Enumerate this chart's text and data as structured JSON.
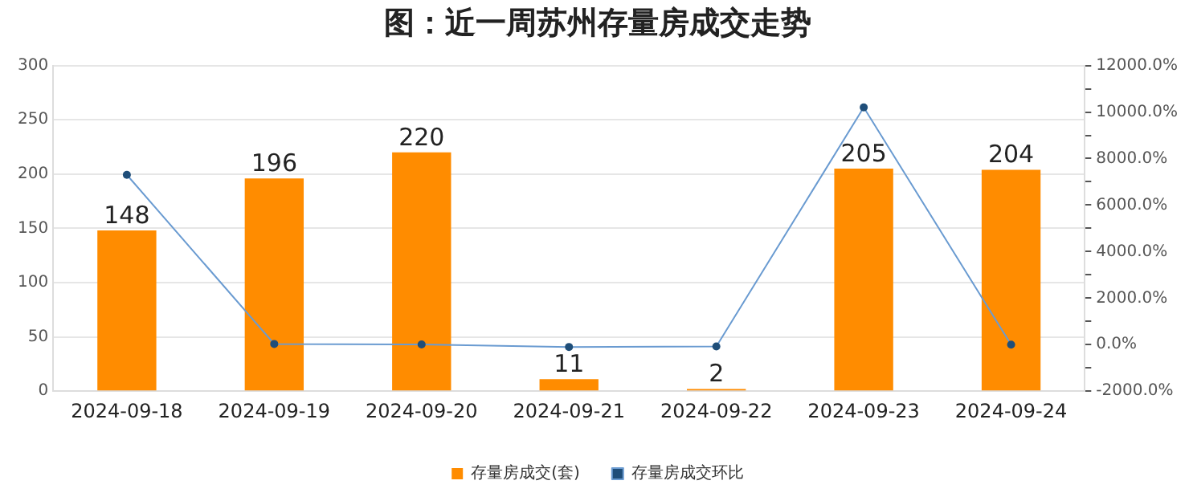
{
  "chart_data": {
    "type": "bar",
    "title": "图：近一周苏州存量房成交走势",
    "categories": [
      "2024-09-18",
      "2024-09-19",
      "2024-09-20",
      "2024-09-21",
      "2024-09-22",
      "2024-09-23",
      "2024-09-24"
    ],
    "series": [
      {
        "name": "存量房成交(套)",
        "color": "#ff8c00",
        "values": [
          148,
          196,
          220,
          11,
          2,
          205,
          204
        ],
        "value_labels": [
          "148",
          "196",
          "220",
          "11",
          "2",
          "205",
          "204"
        ]
      },
      {
        "name": "存量房成交环比",
        "type": "line",
        "axis": "y2",
        "color": "#6a9bd1",
        "values": [
          7300,
          30,
          10,
          -100,
          -80,
          10200,
          0
        ]
      }
    ],
    "ylim": [
      0,
      300
    ],
    "yticks": [
      0,
      50,
      100,
      150,
      200,
      250,
      300
    ],
    "y2lim": [
      -2000,
      12000
    ],
    "y2ticks": [
      {
        "value": -2000,
        "label": "-2000.0%"
      },
      {
        "value": -1000,
        "label": null
      },
      {
        "value": 0,
        "label": "0.0%"
      },
      {
        "value": 1000,
        "label": null
      },
      {
        "value": 2000,
        "label": "2000.0%"
      },
      {
        "value": 3000,
        "label": null
      },
      {
        "value": 4000,
        "label": "4000.0%"
      },
      {
        "value": 5000,
        "label": null
      },
      {
        "value": 6000,
        "label": "6000.0%"
      },
      {
        "value": 7000,
        "label": null
      },
      {
        "value": 8000,
        "label": "8000.0%"
      },
      {
        "value": 9000,
        "label": null
      },
      {
        "value": 10000,
        "label": "10000.0%"
      },
      {
        "value": 11000,
        "label": null
      },
      {
        "value": 12000,
        "label": "12000.0%"
      }
    ],
    "grid": "y",
    "legend": "bottom",
    "marker": "circle",
    "line_style": "solid"
  }
}
